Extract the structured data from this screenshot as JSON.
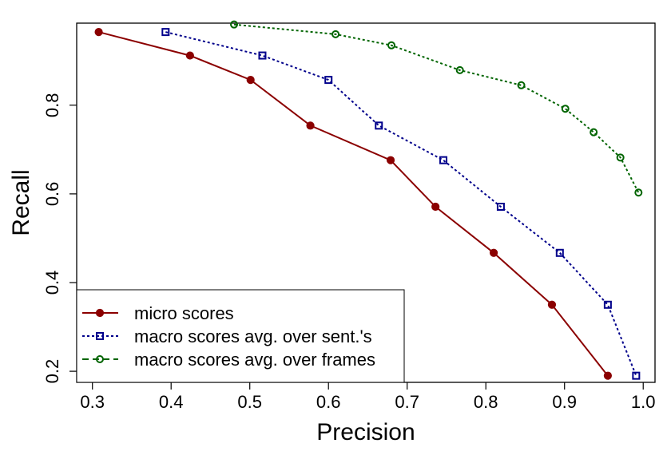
{
  "chart_data": {
    "type": "line",
    "xlabel": "Precision",
    "ylabel": "Recall",
    "xlim": [
      0.28,
      1.015
    ],
    "ylim": [
      0.175,
      0.985
    ],
    "x_ticks": [
      0.3,
      0.4,
      0.5,
      0.6,
      0.7,
      0.8,
      0.9,
      1.0
    ],
    "x_tick_labels": [
      "0.3",
      "0.4",
      "0.5",
      "0.6",
      "0.7",
      "0.8",
      "0.9",
      "1.0"
    ],
    "y_ticks": [
      0.2,
      0.4,
      0.6,
      0.8
    ],
    "y_tick_labels": [
      "0.2",
      "0.4",
      "0.6",
      "0.8"
    ],
    "grid": false,
    "legend_position": "bottom-left",
    "series": [
      {
        "name": "micro scores",
        "color": "#8b0000",
        "marker": "filled-circle",
        "line_style": "solid",
        "x": [
          0.308,
          0.424,
          0.501,
          0.577,
          0.679,
          0.736,
          0.81,
          0.884,
          0.955
        ],
        "y": [
          0.965,
          0.912,
          0.857,
          0.754,
          0.676,
          0.571,
          0.467,
          0.35,
          0.19
        ]
      },
      {
        "name": "macro scores avg. over sent.'s",
        "color": "#00008b",
        "marker": "open-square",
        "line_style": "dotted",
        "x": [
          0.393,
          0.516,
          0.6,
          0.664,
          0.746,
          0.819,
          0.894,
          0.955,
          0.991
        ],
        "y": [
          0.965,
          0.912,
          0.857,
          0.754,
          0.676,
          0.571,
          0.467,
          0.35,
          0.19
        ]
      },
      {
        "name": "macro scores avg. over frames",
        "color": "#006400",
        "marker": "open-circle",
        "line_style": "dotted",
        "x": [
          0.48,
          0.609,
          0.68,
          0.767,
          0.845,
          0.901,
          0.937,
          0.971,
          0.994
        ],
        "y": [
          0.982,
          0.96,
          0.935,
          0.879,
          0.845,
          0.792,
          0.739,
          0.682,
          0.603
        ]
      }
    ]
  }
}
